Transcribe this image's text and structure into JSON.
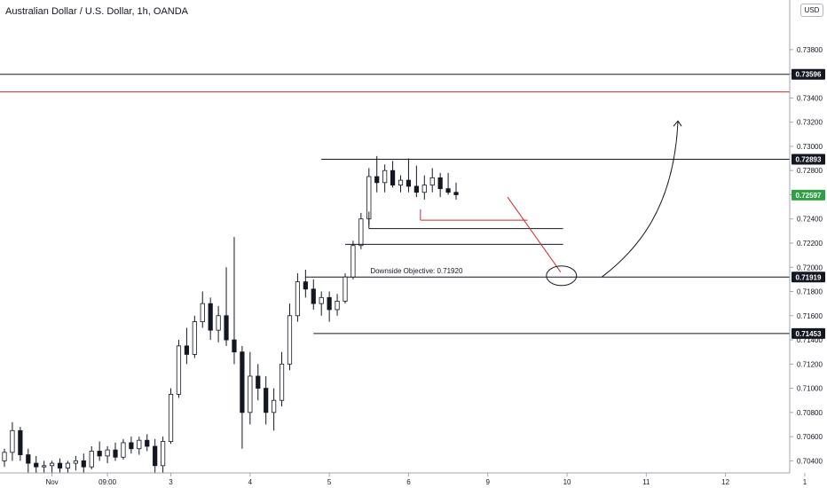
{
  "title": "Australian Dollar / U.S. Dollar, 1h, OANDA",
  "currency_button": "USD",
  "chart_data": {
    "type": "candlestick",
    "ylim": [
      0.703,
      0.7421
    ],
    "y_ticks": [
      "0.73800",
      "0.73600",
      "0.73400",
      "0.73200",
      "0.73000",
      "0.72800",
      "0.72600",
      "0.72400",
      "0.72200",
      "0.72000",
      "0.71800",
      "0.71600",
      "0.71400",
      "0.71200",
      "0.71000",
      "0.70800",
      "0.70600",
      "0.70400"
    ],
    "y_tick_values": [
      0.738,
      0.736,
      0.734,
      0.732,
      0.73,
      0.728,
      0.726,
      0.724,
      0.722,
      0.72,
      0.718,
      0.716,
      0.714,
      0.712,
      0.71,
      0.708,
      0.706,
      0.704
    ],
    "x_ticks": [
      {
        "label": "Nov",
        "t": 6
      },
      {
        "label": "09:00",
        "t": 13
      },
      {
        "label": "3",
        "t": 21
      },
      {
        "label": "4",
        "t": 31
      },
      {
        "label": "5",
        "t": 41
      },
      {
        "label": "6",
        "t": 51
      },
      {
        "label": "9",
        "t": 61
      },
      {
        "label": "10",
        "t": 71
      },
      {
        "label": "11",
        "t": 81
      },
      {
        "label": "12",
        "t": 91
      },
      {
        "label": "1",
        "t": 101
      }
    ],
    "candles": [
      [
        0.704,
        0.705,
        0.7035,
        0.7047
      ],
      [
        0.7047,
        0.7072,
        0.704,
        0.7065
      ],
      [
        0.7065,
        0.7068,
        0.704,
        0.7045
      ],
      [
        0.7045,
        0.705,
        0.703,
        0.7038
      ],
      [
        0.7038,
        0.7044,
        0.703,
        0.7035
      ],
      [
        0.7035,
        0.704,
        0.703,
        0.7036
      ],
      [
        0.7036,
        0.704,
        0.703,
        0.7038
      ],
      [
        0.7038,
        0.7042,
        0.703,
        0.7034
      ],
      [
        0.7034,
        0.704,
        0.703,
        0.7038
      ],
      [
        0.7038,
        0.7044,
        0.7032,
        0.704
      ],
      [
        0.704,
        0.7046,
        0.703,
        0.7035
      ],
      [
        0.7035,
        0.7052,
        0.7033,
        0.7048
      ],
      [
        0.7048,
        0.7056,
        0.704,
        0.7044
      ],
      [
        0.7044,
        0.7052,
        0.7038,
        0.7049
      ],
      [
        0.7049,
        0.7055,
        0.704,
        0.7043
      ],
      [
        0.7043,
        0.7058,
        0.7041,
        0.7055
      ],
      [
        0.7055,
        0.706,
        0.7046,
        0.705
      ],
      [
        0.705,
        0.706,
        0.7045,
        0.7057
      ],
      [
        0.7057,
        0.7062,
        0.7048,
        0.7052
      ],
      [
        0.7052,
        0.7058,
        0.703,
        0.7036
      ],
      [
        0.7036,
        0.706,
        0.703,
        0.7056
      ],
      [
        0.7056,
        0.71,
        0.7054,
        0.7095
      ],
      [
        0.7095,
        0.714,
        0.7092,
        0.7135
      ],
      [
        0.7135,
        0.715,
        0.712,
        0.7128
      ],
      [
        0.7128,
        0.716,
        0.7125,
        0.7155
      ],
      [
        0.7155,
        0.718,
        0.715,
        0.717
      ],
      [
        0.717,
        0.7175,
        0.714,
        0.7148
      ],
      [
        0.7148,
        0.7168,
        0.7138,
        0.716
      ],
      [
        0.716,
        0.72,
        0.7135,
        0.714
      ],
      [
        0.714,
        0.7225,
        0.712,
        0.713
      ],
      [
        0.713,
        0.7135,
        0.705,
        0.708
      ],
      [
        0.708,
        0.713,
        0.707,
        0.711
      ],
      [
        0.711,
        0.712,
        0.709,
        0.71
      ],
      [
        0.71,
        0.711,
        0.707,
        0.708
      ],
      [
        0.708,
        0.71,
        0.7065,
        0.709
      ],
      [
        0.709,
        0.713,
        0.7085,
        0.712
      ],
      [
        0.712,
        0.717,
        0.7115,
        0.716
      ],
      [
        0.716,
        0.7195,
        0.7155,
        0.7188
      ],
      [
        0.7188,
        0.7198,
        0.7175,
        0.7182
      ],
      [
        0.7182,
        0.719,
        0.7165,
        0.717
      ],
      [
        0.717,
        0.718,
        0.716,
        0.7175
      ],
      [
        0.7175,
        0.718,
        0.7155,
        0.7165
      ],
      [
        0.7165,
        0.7178,
        0.716,
        0.7172
      ],
      [
        0.7172,
        0.7195,
        0.717,
        0.7192
      ],
      [
        0.7192,
        0.7222,
        0.719,
        0.7218
      ],
      [
        0.7218,
        0.7245,
        0.7215,
        0.724
      ],
      [
        0.724,
        0.7282,
        0.7235,
        0.7275
      ],
      [
        0.7275,
        0.7292,
        0.7262,
        0.727
      ],
      [
        0.727,
        0.7285,
        0.7262,
        0.728
      ],
      [
        0.728,
        0.7288,
        0.7266,
        0.7268
      ],
      [
        0.7268,
        0.7276,
        0.7262,
        0.7272
      ],
      [
        0.7272,
        0.729,
        0.7262,
        0.7267
      ],
      [
        0.7267,
        0.7284,
        0.7258,
        0.7262
      ],
      [
        0.7262,
        0.7276,
        0.7256,
        0.7268
      ],
      [
        0.7268,
        0.7282,
        0.7262,
        0.7274
      ],
      [
        0.7274,
        0.7278,
        0.7258,
        0.7265
      ],
      [
        0.7265,
        0.7278,
        0.726,
        0.7262
      ],
      [
        0.7262,
        0.727,
        0.7256,
        0.726
      ]
    ],
    "horizontal_levels": [
      {
        "price": 0.73596,
        "label": "0.73596",
        "color": "#131722",
        "t_start": -1
      },
      {
        "price": 0.7345,
        "color": "#cc2a2a",
        "t_start": -1
      },
      {
        "price": 0.72893,
        "label": "0.72893",
        "color": "#131722",
        "t_start": 40
      },
      {
        "price": 0.72597,
        "label": "0.72597",
        "color": "#2ea043",
        "marker": "current"
      },
      {
        "price": 0.71919,
        "label": "0.71919",
        "color": "#131722",
        "t_start": 38
      },
      {
        "price": 0.71453,
        "label": "0.71453",
        "color": "#131722",
        "t_start": 39
      }
    ],
    "segments": [
      {
        "price": 0.7239,
        "t_start": 52.5,
        "t_end": 66,
        "color": "#cc2a2a"
      },
      {
        "price": 0.7232,
        "t_start": 46,
        "t_end": 70.5,
        "color": "#131722"
      },
      {
        "price": 0.7219,
        "t_start": 43,
        "t_end": 70.5,
        "color": "#131722"
      }
    ],
    "annotations": [
      {
        "text": "Downside Objective: 0.71920",
        "price": 0.7195,
        "t": 52
      }
    ]
  }
}
